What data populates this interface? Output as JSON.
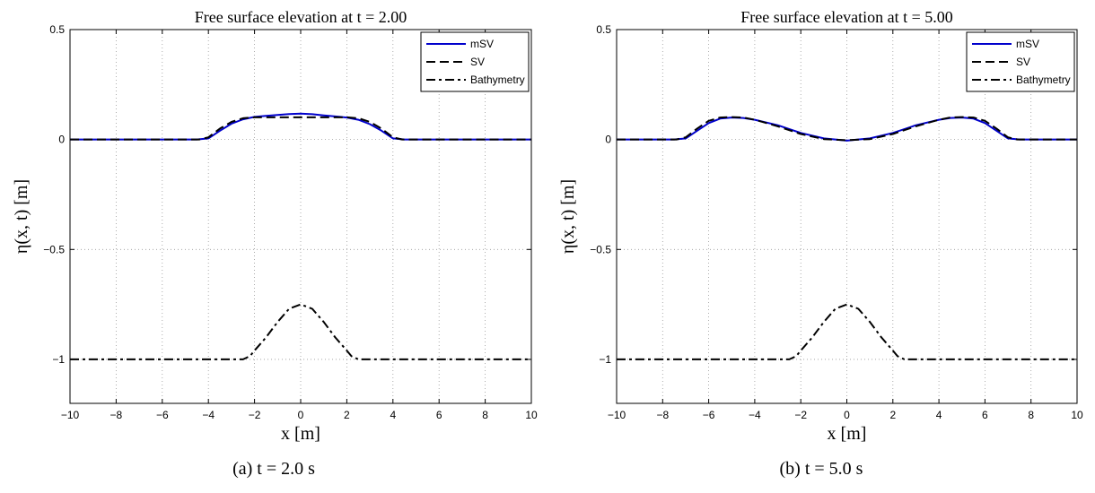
{
  "chart_data": [
    {
      "type": "line",
      "title": "Free surface elevation at t = 2.00",
      "xlabel": "x [m]",
      "ylabel": "η(x, t) [m]",
      "xlim": [
        -10,
        10
      ],
      "ylim": [
        -1.2,
        0.5
      ],
      "xticks": [
        -10,
        -8,
        -6,
        -4,
        -2,
        0,
        2,
        4,
        6,
        8,
        10
      ],
      "yticks": [
        0.5,
        0,
        -0.5,
        -1
      ],
      "ytick_labels": [
        "0.5",
        "0",
        "−0.5",
        "−1"
      ],
      "xtick_labels": [
        "−10",
        "−8",
        "−6",
        "−4",
        "−2",
        "0",
        "2",
        "4",
        "6",
        "8",
        "10"
      ],
      "grid": true,
      "legend_position": "top-right",
      "series": [
        {
          "name": "mSV",
          "color": "#0000cc",
          "style": "solid",
          "x": [
            -10,
            -4.5,
            -4,
            -3.5,
            -3,
            -2.5,
            -2,
            -1.5,
            -1,
            -0.5,
            0,
            0.5,
            1,
            1.5,
            2,
            2.5,
            3,
            3.5,
            4,
            4.5,
            10
          ],
          "y": [
            0,
            0,
            0.005,
            0.04,
            0.072,
            0.092,
            0.103,
            0.108,
            0.112,
            0.116,
            0.118,
            0.115,
            0.11,
            0.105,
            0.1,
            0.09,
            0.07,
            0.04,
            0.005,
            0,
            0
          ]
        },
        {
          "name": "SV",
          "color": "#000000",
          "style": "dashed",
          "x": [
            -10,
            -4.4,
            -4,
            -3.5,
            -3,
            -2.5,
            -2,
            -1,
            0,
            1,
            2,
            2.5,
            3,
            3.5,
            4,
            4.4,
            10
          ],
          "y": [
            0,
            0,
            0.01,
            0.05,
            0.08,
            0.097,
            0.101,
            0.101,
            0.101,
            0.101,
            0.101,
            0.097,
            0.08,
            0.05,
            0.01,
            0,
            0
          ]
        },
        {
          "name": "Bathymetry",
          "color": "#000000",
          "style": "dashdot",
          "x": [
            -10,
            -2.5,
            -2.2,
            -2,
            -1.5,
            -1,
            -0.5,
            0,
            0.5,
            1,
            1.5,
            2,
            2.2,
            2.5,
            10
          ],
          "y": [
            -1,
            -1,
            -0.985,
            -0.96,
            -0.9,
            -0.83,
            -0.77,
            -0.75,
            -0.77,
            -0.83,
            -0.9,
            -0.96,
            -0.985,
            -1,
            -1
          ]
        }
      ]
    },
    {
      "type": "line",
      "title": "Free surface elevation at t = 5.00",
      "xlabel": "x [m]",
      "ylabel": "η(x, t) [m]",
      "xlim": [
        -10,
        10
      ],
      "ylim": [
        -1.2,
        0.5
      ],
      "xticks": [
        -10,
        -8,
        -6,
        -4,
        -2,
        0,
        2,
        4,
        6,
        8,
        10
      ],
      "yticks": [
        0.5,
        0,
        -0.5,
        -1
      ],
      "ytick_labels": [
        "0.5",
        "0",
        "−0.5",
        "−1"
      ],
      "xtick_labels": [
        "−10",
        "−8",
        "−6",
        "−4",
        "−2",
        "0",
        "2",
        "4",
        "6",
        "8",
        "10"
      ],
      "grid": true,
      "legend_position": "top-right",
      "series": [
        {
          "name": "mSV",
          "color": "#0000cc",
          "style": "solid",
          "x": [
            -10,
            -7.5,
            -7,
            -6.5,
            -6,
            -5.5,
            -5,
            -4.5,
            -4,
            -3,
            -2,
            -1,
            0,
            1,
            2,
            3,
            4,
            4.5,
            5,
            5.5,
            6,
            6.5,
            7,
            7.5,
            10
          ],
          "y": [
            0,
            0,
            0.005,
            0.04,
            0.075,
            0.095,
            0.1,
            0.098,
            0.09,
            0.065,
            0.03,
            0.005,
            -0.005,
            0.005,
            0.03,
            0.065,
            0.09,
            0.098,
            0.1,
            0.095,
            0.075,
            0.04,
            0.005,
            0,
            0
          ]
        },
        {
          "name": "SV",
          "color": "#000000",
          "style": "dashed",
          "x": [
            -10,
            -7.4,
            -7,
            -6.5,
            -6,
            -5.5,
            -5,
            -4.5,
            -4,
            -3,
            -2,
            -1,
            0,
            1,
            2,
            3,
            4,
            4.5,
            5,
            5.5,
            6,
            6.5,
            7,
            7.4,
            10
          ],
          "y": [
            0,
            0,
            0.01,
            0.05,
            0.085,
            0.1,
            0.102,
            0.1,
            0.09,
            0.06,
            0.025,
            0.002,
            -0.003,
            0.002,
            0.025,
            0.06,
            0.09,
            0.1,
            0.102,
            0.1,
            0.085,
            0.05,
            0.01,
            0,
            0
          ]
        },
        {
          "name": "Bathymetry",
          "color": "#000000",
          "style": "dashdot",
          "x": [
            -10,
            -2.5,
            -2.2,
            -2,
            -1.5,
            -1,
            -0.5,
            0,
            0.5,
            1,
            1.5,
            2,
            2.2,
            2.5,
            10
          ],
          "y": [
            -1,
            -1,
            -0.985,
            -0.96,
            -0.9,
            -0.83,
            -0.77,
            -0.75,
            -0.77,
            -0.83,
            -0.9,
            -0.96,
            -0.985,
            -1,
            -1
          ]
        }
      ]
    }
  ],
  "captions": [
    "(a)  t = 2.0 s",
    "(b)  t = 5.0 s"
  ]
}
